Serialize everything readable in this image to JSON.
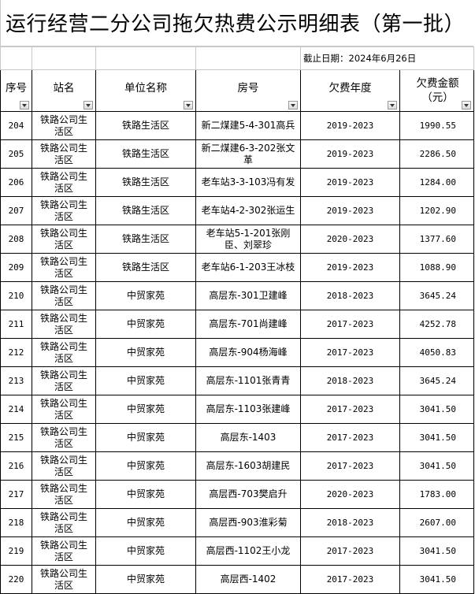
{
  "title": "运行经营二分公司拖欠热费公示明细表（第一批）",
  "cutoff_date": "截止日期：2024年6月26日",
  "headers": [
    "序号",
    "站名",
    "单位名称",
    "房号",
    "欠费年度",
    "欠费金额（元）"
  ],
  "rows": [
    {
      "no": "204",
      "station": "铁路公司生活区",
      "unit": "铁路生活区",
      "room": "新二煤建5-4-301高兵",
      "years": "2019-2023",
      "amount": "1990.55"
    },
    {
      "no": "205",
      "station": "铁路公司生活区",
      "unit": "铁路生活区",
      "room": "新二煤建6-3-202张文革",
      "years": "2019-2023",
      "amount": "2286.50"
    },
    {
      "no": "206",
      "station": "铁路公司生活区",
      "unit": "铁路生活区",
      "room": "老车站3-3-103冯有发",
      "years": "2019-2023",
      "amount": "1284.00"
    },
    {
      "no": "207",
      "station": "铁路公司生活区",
      "unit": "铁路生活区",
      "room": "老车站4-2-302张运生",
      "years": "2019-2023",
      "amount": "1202.90"
    },
    {
      "no": "208",
      "station": "铁路公司生活区",
      "unit": "铁路生活区",
      "room": "老车站5-1-201张刚臣、刘翠珍",
      "years": "2020-2023",
      "amount": "1377.60"
    },
    {
      "no": "209",
      "station": "铁路公司生活区",
      "unit": "铁路生活区",
      "room": "老车站6-1-203王冰枝",
      "years": "2019-2023",
      "amount": "1088.90"
    },
    {
      "no": "210",
      "station": "铁路公司生活区",
      "unit": "中贸家苑",
      "room": "高层东-301卫建峰",
      "years": "2018-2023",
      "amount": "3645.24"
    },
    {
      "no": "211",
      "station": "铁路公司生活区",
      "unit": "中贸家苑",
      "room": "高层东-701尚建峰",
      "years": "2017-2023",
      "amount": "4252.78"
    },
    {
      "no": "212",
      "station": "铁路公司生活区",
      "unit": "中贸家苑",
      "room": "高层东-904杨海峰",
      "years": "2017-2023",
      "amount": "4050.83"
    },
    {
      "no": "213",
      "station": "铁路公司生活区",
      "unit": "中贸家苑",
      "room": "高层东-1101张青青",
      "years": "2018-2023",
      "amount": "3645.24"
    },
    {
      "no": "214",
      "station": "铁路公司生活区",
      "unit": "中贸家苑",
      "room": "高层东-1103张建峰",
      "years": "2017-2023",
      "amount": "3041.50"
    },
    {
      "no": "215",
      "station": "铁路公司生活区",
      "unit": "中贸家苑",
      "room": "高层东-1403",
      "years": "2017-2023",
      "amount": "3041.50"
    },
    {
      "no": "216",
      "station": "铁路公司生活区",
      "unit": "中贸家苑",
      "room": "高层东-1603胡建民",
      "years": "2017-2023",
      "amount": "3041.50"
    },
    {
      "no": "217",
      "station": "铁路公司生活区",
      "unit": "中贸家苑",
      "room": "高层西-703樊启升",
      "years": "2020-2023",
      "amount": "1783.00"
    },
    {
      "no": "218",
      "station": "铁路公司生活区",
      "unit": "中贸家苑",
      "room": "高层西-903淮彩菊",
      "years": "2018-2023",
      "amount": "2607.00"
    },
    {
      "no": "219",
      "station": "铁路公司生活区",
      "unit": "中贸家苑",
      "room": "高层西-1102王小龙",
      "years": "2017-2023",
      "amount": "3041.50"
    },
    {
      "no": "220",
      "station": "铁路公司生活区",
      "unit": "中贸家苑",
      "room": "高层西-1402",
      "years": "2017-2023",
      "amount": "3041.50"
    }
  ]
}
